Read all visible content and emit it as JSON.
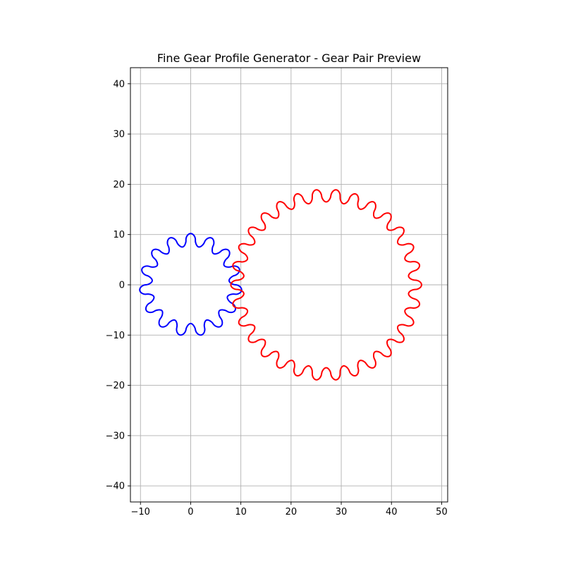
{
  "chart_data": {
    "type": "line",
    "title": "Fine Gear Profile Generator - Gear Pair Preview",
    "xlabel": "",
    "ylabel": "",
    "xlim": [
      -12,
      51.2
    ],
    "ylim": [
      -43.2,
      43.2
    ],
    "xticks": [
      -10,
      0,
      10,
      20,
      30,
      40,
      50
    ],
    "yticks": [
      -40,
      -30,
      -20,
      -10,
      0,
      10,
      20,
      30,
      40
    ],
    "xtick_labels": [
      "−10",
      "0",
      "10",
      "20",
      "30",
      "40",
      "50"
    ],
    "ytick_labels": [
      "−40",
      "−30",
      "−20",
      "−10",
      "0",
      "10",
      "20",
      "30",
      "40"
    ],
    "grid": true,
    "equal_aspect": true,
    "series": [
      {
        "shape": "gear",
        "center": [
          0,
          0
        ],
        "teeth": 15,
        "outer_radius": 10.2,
        "root_radius": 7.7,
        "rotation_deg": 90,
        "color": "#0000ff"
      },
      {
        "shape": "gear",
        "center": [
          27,
          0
        ],
        "teeth": 30,
        "outer_radius": 19.0,
        "root_radius": 16.5,
        "rotation_deg": 0,
        "color": "#ff0000"
      }
    ]
  }
}
